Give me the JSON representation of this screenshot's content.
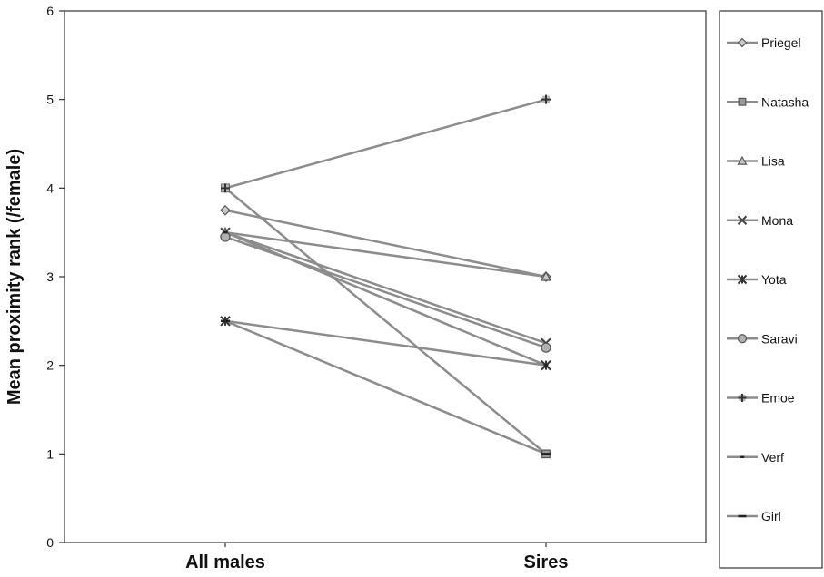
{
  "chart_data": {
    "type": "line",
    "categories": [
      "All males",
      "Sires"
    ],
    "ylabel": "Mean proximity rank (/female)",
    "xlabel": "",
    "ylim": [
      0,
      6
    ],
    "yticks": [
      0,
      1,
      2,
      3,
      4,
      5,
      6
    ],
    "grid": false,
    "legend_position": "right",
    "line_color": "#8c8c8c",
    "marker_color": "#8a8a8a",
    "series": [
      {
        "name": "Priegel",
        "marker": "diamond",
        "values": [
          3.75,
          3.0
        ]
      },
      {
        "name": "Natasha",
        "marker": "square",
        "values": [
          4.0,
          1.0
        ]
      },
      {
        "name": "Lisa",
        "marker": "triangle",
        "values": [
          3.5,
          3.0
        ]
      },
      {
        "name": "Mona",
        "marker": "x",
        "values": [
          3.5,
          2.25
        ]
      },
      {
        "name": "Yota",
        "marker": "star",
        "values": [
          2.5,
          2.0
        ]
      },
      {
        "name": "Saravi",
        "marker": "circle",
        "values": [
          3.45,
          2.2
        ]
      },
      {
        "name": "Emoe",
        "marker": "plus",
        "values": [
          4.0,
          5.0
        ]
      },
      {
        "name": "Verf",
        "marker": "short-dash",
        "values": [
          3.5,
          2.0
        ]
      },
      {
        "name": "Girl",
        "marker": "long-dash",
        "values": [
          2.5,
          1.0
        ]
      }
    ]
  }
}
